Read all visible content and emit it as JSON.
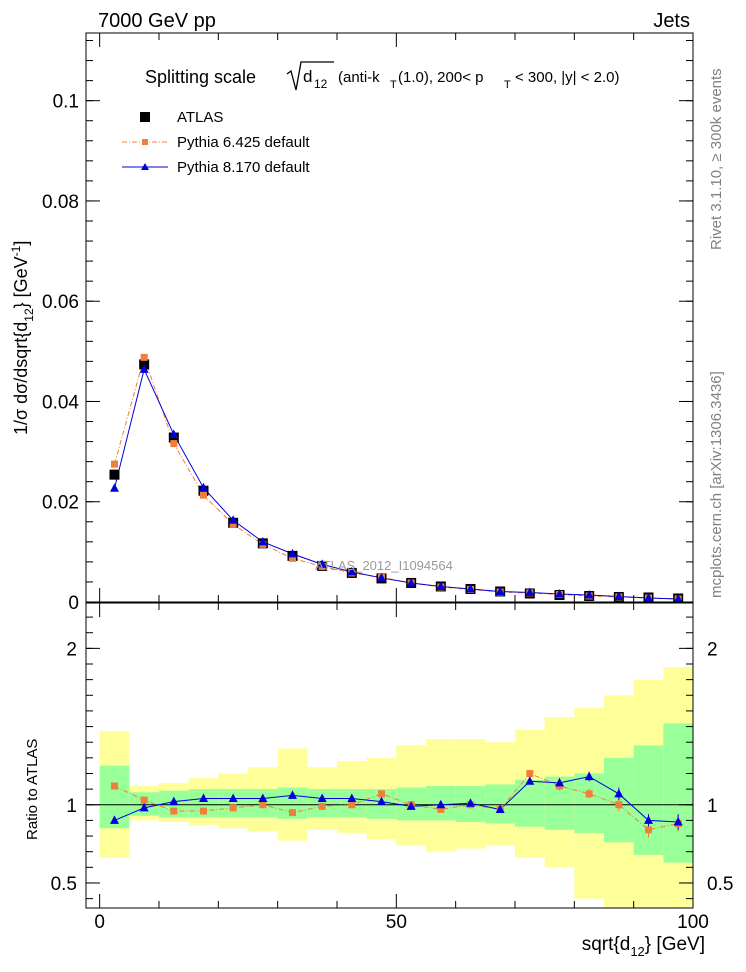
{
  "header": {
    "left": "7000 GeV pp",
    "right": "Jets"
  },
  "side_labels": {
    "rivet": "Rivet 3.1.10, ≥ 300k events",
    "mcplots": "mcplots.cern.ch [arXiv:1306.3436]"
  },
  "watermark": "ATLAS_2012_I1094564",
  "colors": {
    "atlas": "#000000",
    "pythia6": "#f07f3c",
    "pythia8": "#0000dd",
    "band_inner": "#99ff99",
    "band_outer": "#ffff99"
  },
  "chart_data": [
    {
      "type": "scatter",
      "panel": "main",
      "title_parts": {
        "main": "Splitting scale",
        "sub": "12",
        "rest": "(anti-k",
        "ksub": "T",
        "rest2": "(1.0), 200< p",
        "psub": "T",
        "rest3": "< 300, |y| < 2.0)"
      },
      "ylabel": "1/σ dσ/dsqrt{d",
      "ylabel_sub": "12",
      "ylabel_unit": "} [GeV",
      "ylabel_sup": "-1",
      "ylabel_end": "]",
      "ylim": [
        0,
        0.1135
      ],
      "yticks": [
        {
          "v": 0,
          "label": "0"
        },
        {
          "v": 0.02,
          "label": "0.02"
        },
        {
          "v": 0.04,
          "label": "0.04"
        },
        {
          "v": 0.06,
          "label": "0.06"
        },
        {
          "v": 0.08,
          "label": "0.08"
        },
        {
          "v": 0.1,
          "label": "0.1"
        }
      ],
      "xlim": [
        -2.3,
        100
      ],
      "legend": [
        {
          "name": "ATLAS",
          "series": "atlas"
        },
        {
          "name": "Pythia 6.425 default",
          "series": "pythia6"
        },
        {
          "name": "Pythia 8.170 default",
          "series": "pythia8"
        }
      ],
      "x": [
        2.5,
        7.5,
        12.5,
        17.5,
        22.5,
        27.5,
        32.5,
        37.5,
        42.5,
        47.5,
        52.5,
        57.5,
        62.5,
        67.5,
        72.5,
        77.5,
        82.5,
        87.5,
        92.5,
        97.5
      ],
      "series": [
        {
          "name": "ATLAS",
          "key": "atlas",
          "values": [
            0.0254,
            0.0474,
            0.0328,
            0.0222,
            0.0158,
            0.0117,
            0.0092,
            0.0072,
            0.0058,
            0.0047,
            0.0038,
            0.0031,
            0.0026,
            0.0021,
            0.0017,
            0.0014,
            0.0012,
            0.001,
            0.0009,
            0.0007
          ]
        },
        {
          "name": "Pythia 6.425 default",
          "key": "pythia6",
          "values": [
            0.0275,
            0.0488,
            0.0316,
            0.0213,
            0.0155,
            0.0115,
            0.0087,
            0.0071,
            0.0058,
            0.0049,
            0.0038,
            0.003,
            0.0025,
            0.002,
            0.0018,
            0.0015,
            0.0012,
            0.001,
            0.0008,
            0.0006
          ]
        },
        {
          "name": "Pythia 8.170 default",
          "key": "pythia8",
          "values": [
            0.0227,
            0.0464,
            0.0334,
            0.0228,
            0.0163,
            0.012,
            0.0096,
            0.0075,
            0.006,
            0.0048,
            0.0038,
            0.0031,
            0.0026,
            0.0021,
            0.0019,
            0.0016,
            0.0014,
            0.0011,
            0.0008,
            0.0006
          ]
        }
      ]
    },
    {
      "type": "scatter",
      "panel": "ratio",
      "ylabel": "Ratio to ATLAS",
      "xlabel": "sqrt{d",
      "xlabel_sub": "12",
      "xlabel_end": "} [GeV]",
      "ylim": [
        0.34,
        2.29
      ],
      "yticks": [
        {
          "v": 0.5,
          "label": "0.5"
        },
        {
          "v": 1,
          "label": "1"
        },
        {
          "v": 2,
          "label": "2"
        }
      ],
      "xlim": [
        -2.3,
        100
      ],
      "xticks": [
        {
          "v": 0,
          "label": "0"
        },
        {
          "v": 50,
          "label": "50"
        },
        {
          "v": 100,
          "label": "100"
        }
      ],
      "x": [
        2.5,
        7.5,
        12.5,
        17.5,
        22.5,
        27.5,
        32.5,
        37.5,
        42.5,
        47.5,
        52.5,
        57.5,
        62.5,
        67.5,
        72.5,
        77.5,
        82.5,
        87.5,
        92.5,
        97.5
      ],
      "bands": {
        "edges": [
          0,
          5,
          10,
          15,
          20,
          25,
          30,
          35,
          40,
          45,
          50,
          55,
          60,
          65,
          70,
          75,
          80,
          85,
          90,
          95,
          100
        ],
        "inner_lo": [
          0.85,
          0.93,
          0.92,
          0.92,
          0.92,
          0.92,
          0.91,
          0.92,
          0.92,
          0.91,
          0.9,
          0.9,
          0.89,
          0.88,
          0.86,
          0.84,
          0.82,
          0.76,
          0.68,
          0.63
        ],
        "inner_hi": [
          1.25,
          1.08,
          1.09,
          1.1,
          1.1,
          1.1,
          1.11,
          1.1,
          1.1,
          1.1,
          1.11,
          1.12,
          1.12,
          1.13,
          1.16,
          1.18,
          1.2,
          1.3,
          1.38,
          1.52
        ],
        "outer_lo": [
          0.66,
          0.9,
          0.89,
          0.87,
          0.85,
          0.83,
          0.77,
          0.84,
          0.82,
          0.78,
          0.74,
          0.7,
          0.72,
          0.74,
          0.66,
          0.6,
          0.4,
          0.33,
          0.33,
          0.33
        ],
        "outer_hi": [
          1.47,
          1.12,
          1.14,
          1.17,
          1.2,
          1.24,
          1.36,
          1.24,
          1.28,
          1.3,
          1.38,
          1.42,
          1.42,
          1.4,
          1.48,
          1.56,
          1.62,
          1.7,
          1.8,
          1.88
        ]
      },
      "series": [
        {
          "name": "Pythia 6.425 default",
          "key": "pythia6",
          "values": [
            1.12,
            1.03,
            0.96,
            0.96,
            0.98,
            1.0,
            0.95,
            0.99,
            1.0,
            1.07,
            1.0,
            0.97,
            1.0,
            0.97,
            1.2,
            1.12,
            1.07,
            1.0,
            0.84,
            0.88
          ],
          "err": [
            0,
            0,
            0,
            0,
            0,
            0,
            0,
            0,
            0,
            0,
            0,
            0,
            0,
            0,
            0,
            0.03,
            0.03,
            0.04,
            0.05,
            0.05
          ]
        },
        {
          "name": "Pythia 8.170 default",
          "key": "pythia8",
          "values": [
            0.9,
            0.98,
            1.02,
            1.04,
            1.04,
            1.04,
            1.06,
            1.04,
            1.04,
            1.02,
            0.99,
            1.0,
            1.01,
            0.97,
            1.15,
            1.14,
            1.18,
            1.07,
            0.9,
            0.89
          ],
          "err": [
            0,
            0,
            0,
            0,
            0,
            0,
            0,
            0,
            0,
            0,
            0,
            0,
            0,
            0,
            0.02,
            0.03,
            0.03,
            0.04,
            0.04,
            0.05
          ]
        }
      ]
    }
  ]
}
